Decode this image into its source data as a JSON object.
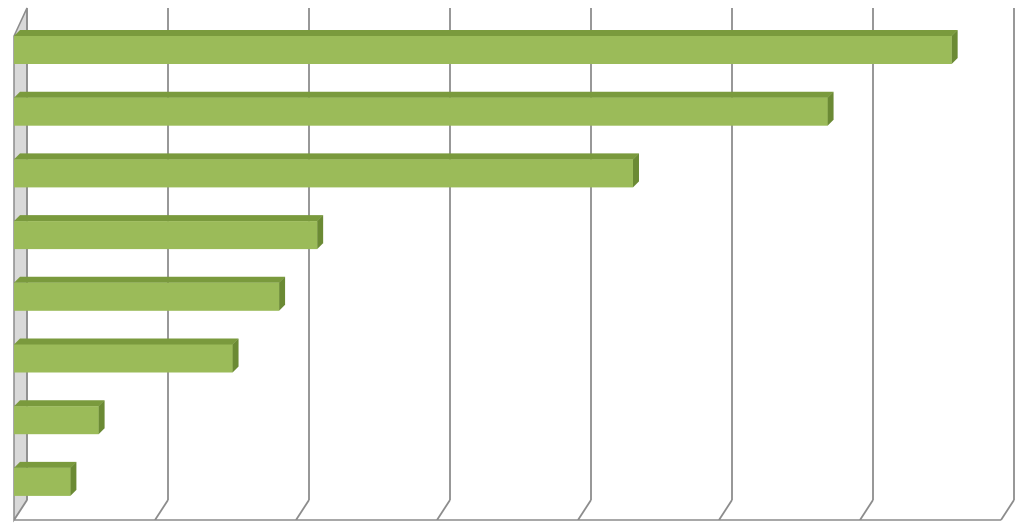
{
  "chart_data": {
    "type": "bar",
    "orientation": "horizontal",
    "style": "3d",
    "grid": true,
    "legend": "none",
    "title": "",
    "xlabel": "",
    "ylabel": "",
    "xlim": [
      0,
      7
    ],
    "gridlines": [
      0,
      1,
      2,
      3,
      4,
      5,
      6,
      7
    ],
    "values": [
      6.65,
      5.77,
      4.39,
      2.15,
      1.88,
      1.55,
      0.6,
      0.4
    ],
    "colors": {
      "bar_front": "#9bbb59",
      "bar_top": "#7a9a3d",
      "bar_side": "#6b8a34",
      "grid": "#8c8c8c",
      "wall": "#d9d9d9"
    }
  }
}
